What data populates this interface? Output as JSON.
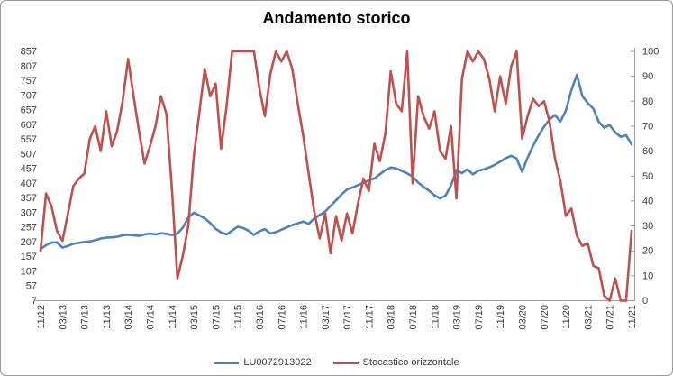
{
  "title": "Andamento storico",
  "colors": {
    "background": "#FFFFFF",
    "frame_border": "#9B9B9B",
    "axis_line": "#9E9E9E",
    "axis_text": "#393939",
    "title_text": "#000000"
  },
  "chart_data": {
    "type": "line",
    "title": "Andamento storico",
    "grid": false,
    "legend_position": "bottom",
    "x_tick_every": 4,
    "x_tick_labels": [
      "11/12",
      "03/13",
      "07/13",
      "11/13",
      "03/14",
      "07/14",
      "11/14",
      "03/15",
      "07/15",
      "11/15",
      "03/16",
      "07/16",
      "11/16",
      "03/17",
      "07/17",
      "11/17",
      "03/18",
      "07/18",
      "11/18",
      "03/19",
      "07/19",
      "11/19",
      "03/20",
      "07/20",
      "11/20",
      "03/21",
      "07/21",
      "11/21"
    ],
    "categories": [
      "11/12",
      "12/12",
      "01/13",
      "02/13",
      "03/13",
      "04/13",
      "05/13",
      "06/13",
      "07/13",
      "08/13",
      "09/13",
      "10/13",
      "11/13",
      "12/13",
      "01/14",
      "02/14",
      "03/14",
      "04/14",
      "05/14",
      "06/14",
      "07/14",
      "08/14",
      "09/14",
      "10/14",
      "11/14",
      "12/14",
      "01/15",
      "02/15",
      "03/15",
      "04/15",
      "05/15",
      "06/15",
      "07/15",
      "08/15",
      "09/15",
      "10/15",
      "11/15",
      "12/15",
      "01/16",
      "02/16",
      "03/16",
      "04/16",
      "05/16",
      "06/16",
      "07/16",
      "08/16",
      "09/16",
      "10/16",
      "11/16",
      "12/16",
      "01/17",
      "02/17",
      "03/17",
      "04/17",
      "05/17",
      "06/17",
      "07/17",
      "08/17",
      "09/17",
      "10/17",
      "11/17",
      "12/17",
      "01/18",
      "02/18",
      "03/18",
      "04/18",
      "05/18",
      "06/18",
      "07/18",
      "08/18",
      "09/18",
      "10/18",
      "11/18",
      "12/18",
      "01/19",
      "02/19",
      "03/19",
      "04/19",
      "05/19",
      "06/19",
      "07/19",
      "08/19",
      "09/19",
      "10/19",
      "11/19",
      "12/19",
      "01/20",
      "02/20",
      "03/20",
      "04/20",
      "05/20",
      "06/20",
      "07/20",
      "08/20",
      "09/20",
      "10/20",
      "11/20",
      "12/20",
      "01/21",
      "02/21",
      "03/21",
      "04/21",
      "05/21",
      "06/21",
      "07/21",
      "08/21",
      "09/21",
      "10/21",
      "11/21"
    ],
    "axes": {
      "left": {
        "min": 7,
        "max": 857,
        "step": 50,
        "ticks": [
          857,
          807,
          757,
          707,
          657,
          607,
          557,
          507,
          457,
          407,
          357,
          307,
          257,
          207,
          157,
          107,
          57,
          7
        ]
      },
      "right": {
        "min": 0,
        "max": 100,
        "step": 10,
        "ticks": [
          100,
          90,
          80,
          70,
          60,
          50,
          40,
          30,
          20,
          10,
          0
        ]
      }
    },
    "series": [
      {
        "name": "LU0072913022",
        "axis": "left",
        "color": "#4F81BD",
        "values": [
          183,
          196,
          205,
          206,
          188,
          194,
          201,
          204,
          207,
          209,
          213,
          219,
          222,
          223,
          225,
          230,
          232,
          230,
          228,
          233,
          236,
          233,
          237,
          235,
          231,
          236,
          256,
          290,
          307,
          298,
          288,
          272,
          252,
          240,
          233,
          246,
          259,
          255,
          246,
          231,
          244,
          251,
          236,
          241,
          249,
          257,
          265,
          271,
          277,
          269,
          287,
          299,
          311,
          330,
          349,
          369,
          386,
          393,
          401,
          409,
          417,
          424,
          438,
          452,
          461,
          458,
          450,
          441,
          430,
          410,
          395,
          382,
          366,
          356,
          365,
          400,
          452,
          442,
          455,
          438,
          450,
          455,
          462,
          470,
          481,
          493,
          501,
          492,
          447,
          495,
          535,
          570,
          600,
          625,
          640,
          618,
          655,
          725,
          777,
          705,
          681,
          662,
          617,
          597,
          606,
          581,
          566,
          571,
          540
        ]
      },
      {
        "name": "Stocastico orizzontale",
        "axis": "right",
        "color": "#C0504D",
        "values": [
          20,
          43,
          38,
          28,
          24,
          35,
          46,
          49,
          51,
          65,
          70,
          60,
          76,
          62,
          68,
          80,
          97,
          82,
          68,
          55,
          62,
          70,
          82,
          75,
          45,
          9,
          18,
          30,
          58,
          75,
          93,
          82,
          87,
          61,
          78,
          100,
          100,
          100,
          100,
          100,
          85,
          74,
          91,
          100,
          96,
          100,
          93,
          79,
          66,
          51,
          36,
          25,
          35,
          19,
          34,
          24,
          35,
          27,
          39,
          49,
          44,
          63,
          56,
          67,
          92,
          79,
          76,
          100,
          47,
          82,
          74,
          69,
          76,
          60,
          57,
          70,
          41,
          89,
          100,
          96,
          100,
          97,
          89,
          76,
          90,
          79,
          94,
          100,
          65,
          74,
          81,
          78,
          80,
          72,
          57,
          48,
          34,
          37,
          26,
          22,
          23,
          14,
          13,
          2,
          0,
          9,
          0,
          0,
          28
        ]
      }
    ]
  }
}
